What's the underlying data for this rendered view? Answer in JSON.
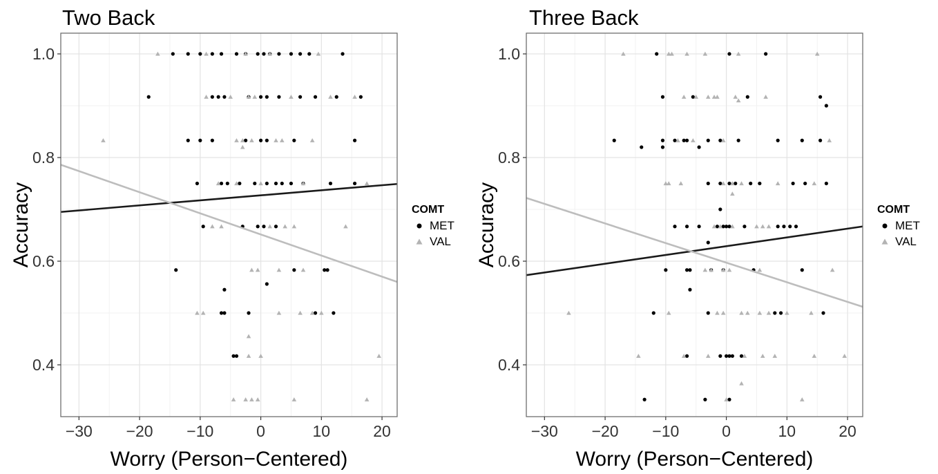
{
  "chart_data": [
    {
      "type": "scatter",
      "title": "Two Back",
      "xlabel": "Worry (Person−Centered)",
      "ylabel": "Accuracy",
      "xlim": [
        -33,
        22.5
      ],
      "ylim": [
        0.3,
        1.04
      ],
      "xticks": [
        -30,
        -20,
        -10,
        0,
        10,
        20
      ],
      "xtick_labels": [
        "−30",
        "−20",
        "−10",
        "0",
        "10",
        "20"
      ],
      "yticks": [
        0.4,
        0.6,
        0.8,
        1.0
      ],
      "ytick_labels": [
        "0.4",
        "0.6",
        "0.8",
        "1.0"
      ],
      "grid": true,
      "legend": {
        "title": "COMT",
        "position": "right",
        "entries": [
          "MET",
          "VAL"
        ]
      },
      "series": [
        {
          "name": "MET",
          "marker": "circle",
          "color": "#000000",
          "points": [
            [
              -14.5,
              1.0
            ],
            [
              -12,
              1.0
            ],
            [
              -10,
              1.0
            ],
            [
              -8,
              1.0
            ],
            [
              -6.5,
              1.0
            ],
            [
              -4,
              1.0
            ],
            [
              -2.5,
              1.0
            ],
            [
              -0.5,
              1.0
            ],
            [
              0.5,
              1.0
            ],
            [
              1.5,
              1.0
            ],
            [
              3,
              1.0
            ],
            [
              5,
              1.0
            ],
            [
              6.5,
              1.0
            ],
            [
              8,
              1.0
            ],
            [
              13.5,
              1.0
            ],
            [
              -18.5,
              0.917
            ],
            [
              -8,
              0.917
            ],
            [
              -7,
              0.917
            ],
            [
              -6,
              0.917
            ],
            [
              -2,
              0.917
            ],
            [
              0,
              0.917
            ],
            [
              1,
              0.917
            ],
            [
              3,
              0.917
            ],
            [
              6.5,
              0.917
            ],
            [
              9,
              0.917
            ],
            [
              12.5,
              0.917
            ],
            [
              16.5,
              0.917
            ],
            [
              -12,
              0.833
            ],
            [
              -10,
              0.833
            ],
            [
              -8,
              0.833
            ],
            [
              -2.5,
              0.833
            ],
            [
              0,
              0.833
            ],
            [
              1,
              0.833
            ],
            [
              5.5,
              0.833
            ],
            [
              15.5,
              0.833
            ],
            [
              -10.5,
              0.75
            ],
            [
              -6.5,
              0.75
            ],
            [
              -5.5,
              0.75
            ],
            [
              -3.5,
              0.75
            ],
            [
              -1,
              0.75
            ],
            [
              1,
              0.75
            ],
            [
              2.5,
              0.75
            ],
            [
              3.5,
              0.75
            ],
            [
              5,
              0.75
            ],
            [
              7,
              0.75
            ],
            [
              11.5,
              0.75
            ],
            [
              15.5,
              0.75
            ],
            [
              -9.5,
              0.667
            ],
            [
              -3,
              0.667
            ],
            [
              -0.5,
              0.667
            ],
            [
              0.5,
              0.667
            ],
            [
              2.5,
              0.667
            ],
            [
              -14,
              0.583
            ],
            [
              5.5,
              0.583
            ],
            [
              10.5,
              0.583
            ],
            [
              11,
              0.583
            ],
            [
              -6,
              0.545
            ],
            [
              1,
              0.556
            ],
            [
              -6.5,
              0.5
            ],
            [
              -6,
              0.5
            ],
            [
              -2,
              0.5
            ],
            [
              9,
              0.5
            ],
            [
              12,
              0.5
            ],
            [
              -4.5,
              0.417
            ],
            [
              -4,
              0.417
            ]
          ]
        },
        {
          "name": "VAL",
          "marker": "triangle",
          "color": "#b3b3b3",
          "points": [
            [
              -17,
              1.0
            ],
            [
              -9,
              1.0
            ],
            [
              -2.5,
              1.0
            ],
            [
              1.5,
              1.0
            ],
            [
              9.5,
              1.0
            ],
            [
              -9,
              0.917
            ],
            [
              -5,
              0.917
            ],
            [
              -2,
              0.917
            ],
            [
              -1,
              0.917
            ],
            [
              5,
              0.917
            ],
            [
              11.5,
              0.917
            ],
            [
              15.5,
              0.917
            ],
            [
              -26,
              0.833
            ],
            [
              -4,
              0.833
            ],
            [
              -3,
              0.833
            ],
            [
              -1.5,
              0.833
            ],
            [
              2.5,
              0.833
            ],
            [
              3.5,
              0.833
            ],
            [
              8.5,
              0.833
            ],
            [
              -3,
              0.82
            ],
            [
              -7,
              0.75
            ],
            [
              -4,
              0.75
            ],
            [
              0,
              0.75
            ],
            [
              7,
              0.75
            ],
            [
              17.5,
              0.75
            ],
            [
              -8,
              0.667
            ],
            [
              -6.5,
              0.667
            ],
            [
              1.5,
              0.667
            ],
            [
              4,
              0.667
            ],
            [
              5.5,
              0.667
            ],
            [
              14,
              0.667
            ],
            [
              -1.5,
              0.583
            ],
            [
              -0.5,
              0.583
            ],
            [
              3,
              0.583
            ],
            [
              7,
              0.583
            ],
            [
              -10.5,
              0.5
            ],
            [
              -9.5,
              0.5
            ],
            [
              3,
              0.5
            ],
            [
              6.5,
              0.5
            ],
            [
              8.5,
              0.5
            ],
            [
              10,
              0.5
            ],
            [
              -2,
              0.455
            ],
            [
              -2,
              0.417
            ],
            [
              0,
              0.417
            ],
            [
              19.5,
              0.417
            ],
            [
              -4.5,
              0.333
            ],
            [
              -2.5,
              0.333
            ],
            [
              -1.5,
              0.333
            ],
            [
              -0.5,
              0.333
            ],
            [
              5.5,
              0.333
            ],
            [
              17.5,
              0.333
            ]
          ]
        }
      ],
      "fit_lines": [
        {
          "series": "MET",
          "color": "#1a1a1a",
          "x": [
            -33,
            22.5
          ],
          "y": [
            0.695,
            0.749
          ]
        },
        {
          "series": "VAL",
          "color": "#bdbdbd",
          "x": [
            -33,
            22.5
          ],
          "y": [
            0.786,
            0.56
          ]
        }
      ]
    },
    {
      "type": "scatter",
      "title": "Three Back",
      "xlabel": "Worry (Person−Centered)",
      "ylabel": "Accuracy",
      "xlim": [
        -33,
        22.5
      ],
      "ylim": [
        0.3,
        1.04
      ],
      "xticks": [
        -30,
        -20,
        -10,
        0,
        10,
        20
      ],
      "xtick_labels": [
        "−30",
        "−20",
        "−10",
        "0",
        "10",
        "20"
      ],
      "yticks": [
        0.4,
        0.6,
        0.8,
        1.0
      ],
      "ytick_labels": [
        "0.4",
        "0.6",
        "0.8",
        "1.0"
      ],
      "grid": true,
      "legend": {
        "title": "COMT",
        "position": "right",
        "entries": [
          "MET",
          "VAL"
        ]
      },
      "series": [
        {
          "name": "MET",
          "marker": "circle",
          "color": "#000000",
          "points": [
            [
              -11.5,
              1.0
            ],
            [
              0.5,
              1.0
            ],
            [
              6.5,
              1.0
            ],
            [
              -10.5,
              0.917
            ],
            [
              -5.5,
              0.917
            ],
            [
              3.5,
              0.917
            ],
            [
              15.5,
              0.917
            ],
            [
              16.5,
              0.9
            ],
            [
              -18.5,
              0.833
            ],
            [
              -10.5,
              0.833
            ],
            [
              -8.5,
              0.833
            ],
            [
              -7,
              0.833
            ],
            [
              -6.5,
              0.833
            ],
            [
              -3,
              0.833
            ],
            [
              -1,
              0.833
            ],
            [
              2,
              0.833
            ],
            [
              8.5,
              0.833
            ],
            [
              12.5,
              0.833
            ],
            [
              15.5,
              0.833
            ],
            [
              -14,
              0.82
            ],
            [
              -10.5,
              0.82
            ],
            [
              -4.5,
              0.82
            ],
            [
              -3,
              0.75
            ],
            [
              -1,
              0.75
            ],
            [
              0.5,
              0.75
            ],
            [
              1.5,
              0.75
            ],
            [
              4,
              0.75
            ],
            [
              5.5,
              0.75
            ],
            [
              11,
              0.75
            ],
            [
              13,
              0.75
            ],
            [
              16.5,
              0.75
            ],
            [
              -1,
              0.7
            ],
            [
              -8.5,
              0.667
            ],
            [
              -6.5,
              0.667
            ],
            [
              -4.5,
              0.667
            ],
            [
              -1.5,
              0.667
            ],
            [
              -0.5,
              0.667
            ],
            [
              0,
              0.667
            ],
            [
              0.5,
              0.667
            ],
            [
              3,
              0.667
            ],
            [
              8.5,
              0.667
            ],
            [
              9.5,
              0.667
            ],
            [
              10.5,
              0.667
            ],
            [
              11.5,
              0.667
            ],
            [
              -3,
              0.636
            ],
            [
              -10,
              0.583
            ],
            [
              -6.5,
              0.583
            ],
            [
              -6,
              0.583
            ],
            [
              -2.5,
              0.583
            ],
            [
              -0.5,
              0.583
            ],
            [
              4.5,
              0.583
            ],
            [
              12.5,
              0.583
            ],
            [
              -6,
              0.545
            ],
            [
              -12,
              0.5
            ],
            [
              -3,
              0.5
            ],
            [
              8,
              0.5
            ],
            [
              9,
              0.5
            ],
            [
              16,
              0.5
            ],
            [
              -6.5,
              0.417
            ],
            [
              -1,
              0.417
            ],
            [
              0,
              0.417
            ],
            [
              0.5,
              0.417
            ],
            [
              1,
              0.417
            ],
            [
              2.5,
              0.417
            ],
            [
              -13.5,
              0.333
            ],
            [
              -3.5,
              0.333
            ],
            [
              0.5,
              0.333
            ]
          ]
        },
        {
          "name": "VAL",
          "marker": "triangle",
          "color": "#b3b3b3",
          "points": [
            [
              -17,
              1.0
            ],
            [
              -9.5,
              1.0
            ],
            [
              -9,
              1.0
            ],
            [
              -6.5,
              1.0
            ],
            [
              -3.5,
              1.0
            ],
            [
              2,
              1.0
            ],
            [
              15,
              1.0
            ],
            [
              -7,
              0.917
            ],
            [
              -5,
              0.917
            ],
            [
              -3,
              0.917
            ],
            [
              -2,
              0.917
            ],
            [
              -1.5,
              0.917
            ],
            [
              1.5,
              0.917
            ],
            [
              6.5,
              0.917
            ],
            [
              2,
              0.91
            ],
            [
              -8,
              0.833
            ],
            [
              -5.5,
              0.833
            ],
            [
              -0.5,
              0.833
            ],
            [
              17,
              0.833
            ],
            [
              -10,
              0.75
            ],
            [
              -9.5,
              0.75
            ],
            [
              -7.5,
              0.75
            ],
            [
              -0.5,
              0.75
            ],
            [
              1,
              0.75
            ],
            [
              2.5,
              0.75
            ],
            [
              8.5,
              0.75
            ],
            [
              14.5,
              0.75
            ],
            [
              1,
              0.73
            ],
            [
              -2,
              0.667
            ],
            [
              -1,
              0.667
            ],
            [
              1,
              0.667
            ],
            [
              5,
              0.667
            ],
            [
              6,
              0.667
            ],
            [
              7,
              0.667
            ],
            [
              -3.5,
              0.583
            ],
            [
              -2.5,
              0.583
            ],
            [
              -0.5,
              0.583
            ],
            [
              0.5,
              0.583
            ],
            [
              5.5,
              0.583
            ],
            [
              17.5,
              0.583
            ],
            [
              -26,
              0.5
            ],
            [
              -9.5,
              0.5
            ],
            [
              -1.5,
              0.5
            ],
            [
              -0.5,
              0.5
            ],
            [
              2.5,
              0.5
            ],
            [
              3.5,
              0.5
            ],
            [
              5.5,
              0.5
            ],
            [
              7,
              0.5
            ],
            [
              10,
              0.5
            ],
            [
              14,
              0.5
            ],
            [
              -14.5,
              0.417
            ],
            [
              -7,
              0.417
            ],
            [
              -3,
              0.417
            ],
            [
              3,
              0.417
            ],
            [
              6,
              0.417
            ],
            [
              8,
              0.417
            ],
            [
              14.5,
              0.417
            ],
            [
              19.5,
              0.417
            ],
            [
              2.5,
              0.364
            ],
            [
              0,
              0.333
            ],
            [
              12.5,
              0.333
            ]
          ]
        }
      ],
      "fit_lines": [
        {
          "series": "MET",
          "color": "#1a1a1a",
          "x": [
            -33,
            22.5
          ],
          "y": [
            0.573,
            0.667
          ]
        },
        {
          "series": "VAL",
          "color": "#bdbdbd",
          "x": [
            -33,
            22.5
          ],
          "y": [
            0.722,
            0.512
          ]
        }
      ]
    }
  ]
}
